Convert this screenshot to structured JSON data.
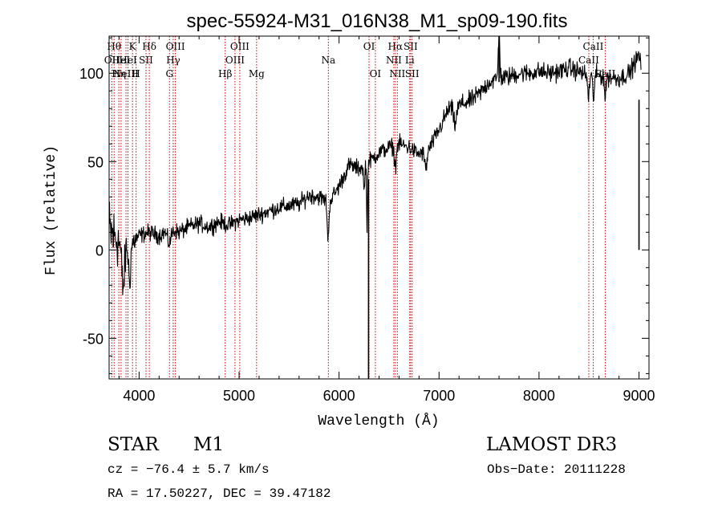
{
  "colors": {
    "foreground": "#000000",
    "line_marker": "#cc0000",
    "background": "#ffffff"
  },
  "chart_data": {
    "type": "line",
    "title": "spec-55924-M31_016N38_M1_sp09-190.fits",
    "xlabel": "Wavelength (Å)",
    "ylabel": "Flux (relative)",
    "xlim": [
      3700,
      9100
    ],
    "ylim": [
      -73,
      121
    ],
    "xticks": [
      4000,
      5000,
      6000,
      7000,
      8000,
      9000
    ],
    "yticks": [
      -50,
      0,
      50,
      100
    ],
    "anchors": [
      [
        3700,
        10
      ],
      [
        3800,
        5
      ],
      [
        3900,
        2
      ],
      [
        4000,
        8
      ],
      [
        4100,
        10
      ],
      [
        4200,
        8
      ],
      [
        4300,
        12
      ],
      [
        4400,
        10
      ],
      [
        4500,
        13
      ],
      [
        4600,
        15
      ],
      [
        4700,
        13
      ],
      [
        4800,
        16
      ],
      [
        4900,
        14
      ],
      [
        5000,
        17
      ],
      [
        5100,
        18
      ],
      [
        5200,
        20
      ],
      [
        5300,
        22
      ],
      [
        5400,
        24
      ],
      [
        5500,
        25
      ],
      [
        5600,
        26
      ],
      [
        5700,
        31
      ],
      [
        5800,
        30
      ],
      [
        5900,
        27
      ],
      [
        6000,
        36
      ],
      [
        6100,
        48
      ],
      [
        6200,
        46
      ],
      [
        6300,
        50
      ],
      [
        6400,
        55
      ],
      [
        6500,
        58
      ],
      [
        6600,
        60
      ],
      [
        6700,
        58
      ],
      [
        6800,
        54
      ],
      [
        6900,
        57
      ],
      [
        7000,
        68
      ],
      [
        7100,
        80
      ],
      [
        7200,
        82
      ],
      [
        7300,
        84
      ],
      [
        7400,
        88
      ],
      [
        7500,
        95
      ],
      [
        7600,
        97
      ],
      [
        7700,
        98
      ],
      [
        7800,
        100
      ],
      [
        7900,
        100
      ],
      [
        8000,
        101
      ],
      [
        8100,
        100
      ],
      [
        8200,
        101
      ],
      [
        8300,
        103
      ],
      [
        8400,
        101
      ],
      [
        8500,
        98
      ],
      [
        8600,
        99
      ],
      [
        8700,
        98
      ],
      [
        8800,
        97
      ],
      [
        8900,
        100
      ],
      [
        8950,
        105
      ],
      [
        9000,
        110
      ],
      [
        9020,
        105
      ]
    ],
    "features": [
      {
        "center": 3840,
        "width": 15,
        "depth": 25
      },
      {
        "center": 3905,
        "width": 10,
        "depth": 20
      },
      {
        "center": 4300,
        "width": 18,
        "depth": 8
      },
      {
        "center": 5890,
        "width": 8,
        "depth": 22
      },
      {
        "center": 6250,
        "width": 6,
        "depth": 15
      },
      {
        "center": 6280,
        "width": 4,
        "depth": 40
      },
      {
        "center": 6563,
        "width": 10,
        "depth": 12
      },
      {
        "center": 6868,
        "width": 12,
        "depth": 10
      },
      {
        "center": 7160,
        "width": 15,
        "depth": 10
      },
      {
        "center": 7600,
        "width": 8,
        "depth": -25
      },
      {
        "center": 8495,
        "width": 8,
        "depth": 12
      },
      {
        "center": 8545,
        "width": 8,
        "depth": 12
      },
      {
        "center": 8662,
        "width": 8,
        "depth": 12
      }
    ],
    "spikes": [
      {
        "x": 6295,
        "ymin": -73,
        "ymax": 40
      },
      {
        "x": 9000,
        "ymin": 0,
        "ymax": 85
      },
      {
        "x": 7600,
        "ymin": 95,
        "ymax": 121
      }
    ],
    "noise": {
      "blue_end": 18,
      "mid": 4,
      "red": 4.5
    },
    "line_markers": [
      {
        "x": 3727,
        "labels": [
          "OII"
        ],
        "rows": [
          1
        ]
      },
      {
        "x": 3750,
        "labels": [
          "Hθ"
        ],
        "rows": [
          0
        ]
      },
      {
        "x": 3797,
        "labels": [
          "Hη"
        ],
        "rows": [
          2
        ]
      },
      {
        "x": 3820,
        "labels": [
          "HeI"
        ],
        "rows": [
          1
        ]
      },
      {
        "x": 3869,
        "labels": [
          "NeIII"
        ],
        "rows": [
          2
        ]
      },
      {
        "x": 3889,
        "labels": [
          "HeI"
        ],
        "rows": [
          1
        ]
      },
      {
        "x": 3934,
        "labels": [
          "K"
        ],
        "rows": [
          0
        ]
      },
      {
        "x": 3970,
        "labels": [
          "H"
        ],
        "rows": [
          2
        ]
      },
      {
        "x": 4069,
        "labels": [
          "SII"
        ],
        "rows": [
          1
        ]
      },
      {
        "x": 4102,
        "labels": [
          "Hδ"
        ],
        "rows": [
          0
        ]
      },
      {
        "x": 4304,
        "labels": [
          "G"
        ],
        "rows": [
          2
        ]
      },
      {
        "x": 4341,
        "labels": [
          "Hγ"
        ],
        "rows": [
          1
        ]
      },
      {
        "x": 4363,
        "labels": [
          "OIII"
        ],
        "rows": [
          0
        ]
      },
      {
        "x": 4861,
        "labels": [
          "Hβ"
        ],
        "rows": [
          2
        ]
      },
      {
        "x": 4959,
        "labels": [
          "OIII"
        ],
        "rows": [
          1
        ]
      },
      {
        "x": 5007,
        "labels": [
          "OIII"
        ],
        "rows": [
          0
        ]
      },
      {
        "x": 5175,
        "labels": [
          "Mg"
        ],
        "rows": [
          2
        ]
      },
      {
        "x": 5893,
        "labels": [
          "Na"
        ],
        "rows": [
          1
        ]
      },
      {
        "x": 6300,
        "labels": [
          "OI"
        ],
        "rows": [
          0
        ]
      },
      {
        "x": 6363,
        "labels": [
          "OI"
        ],
        "rows": [
          2
        ]
      },
      {
        "x": 6548,
        "labels": [
          "NII"
        ],
        "rows": [
          1
        ]
      },
      {
        "x": 6563,
        "labels": [
          "Hα"
        ],
        "rows": [
          0
        ]
      },
      {
        "x": 6583,
        "labels": [
          "NII"
        ],
        "rows": [
          2
        ]
      },
      {
        "x": 6707,
        "labels": [
          "Li"
        ],
        "rows": [
          1
        ]
      },
      {
        "x": 6716,
        "labels": [
          "SII"
        ],
        "rows": [
          0
        ]
      },
      {
        "x": 6731,
        "labels": [
          "SII"
        ],
        "rows": [
          2
        ]
      },
      {
        "x": 8498,
        "labels": [
          "CaII"
        ],
        "rows": [
          1
        ]
      },
      {
        "x": 8542,
        "labels": [
          "CaII"
        ],
        "rows": [
          0
        ]
      },
      {
        "x": 8662,
        "labels": [
          "CaII"
        ],
        "rows": [
          2
        ]
      }
    ]
  },
  "info": {
    "class": "STAR",
    "subclass": "M1",
    "survey": "LAMOST DR3",
    "cz": "cz = −76.4 ± 5.7 km/s",
    "obs_date": "Obs−Date: 20111228",
    "coords": "RA =  17.50227, DEC =  39.47182"
  }
}
